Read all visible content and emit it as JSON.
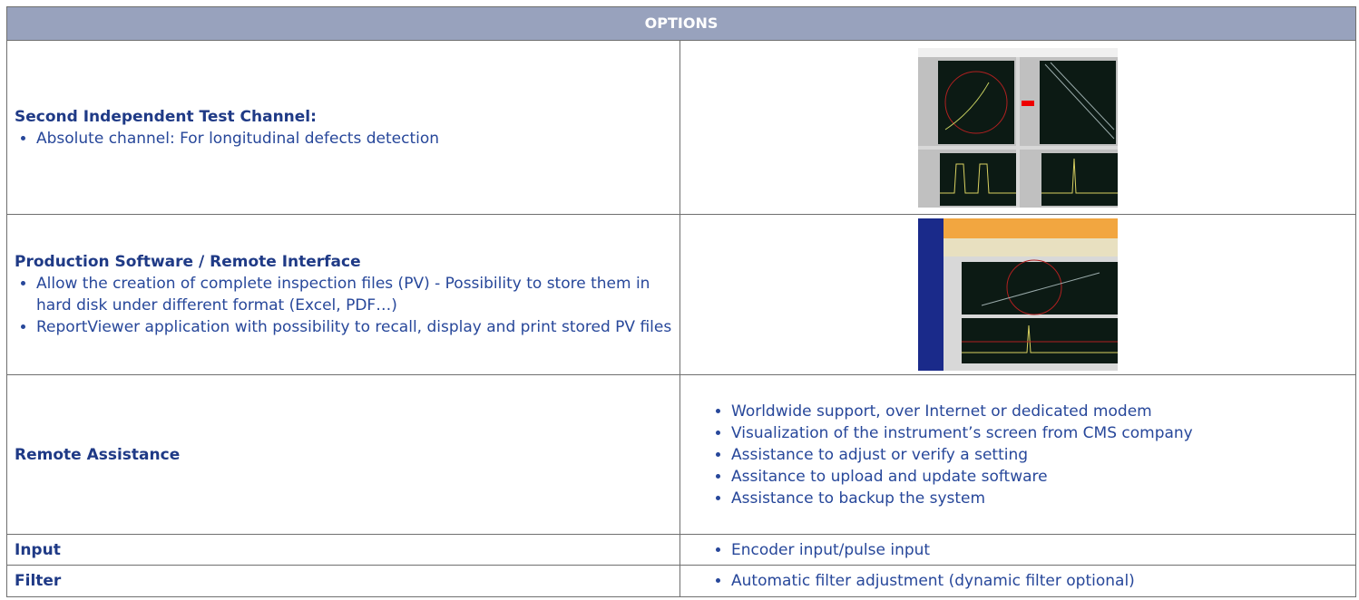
{
  "header": {
    "title": "OPTIONS"
  },
  "table": {
    "rows": [
      {
        "label": "Second Independent Test Channel:",
        "items": [
          "Absolute channel: For longitudinal defects detection"
        ]
      },
      {
        "label": "Production Software / Remote Interface",
        "items": [
          "Allow the creation of complete inspection files (PV) - Possibility to store them in hard disk under different format (Excel, PDF…)",
          "ReportViewer application with possibility to recall, display and print stored PV files"
        ]
      },
      {
        "label": "Remote Assistance",
        "items": [
          "Worldwide support, over Internet or dedicated modem",
          "Visualization of the instrument’s screen from CMS company",
          "Assistance to adjust or verify a setting",
          "Assitance to upload and update software",
          "Assistance to backup the system"
        ]
      },
      {
        "label": "Input",
        "items": [
          "Encoder input/pulse input"
        ]
      },
      {
        "label": "Filter",
        "items": [
          "Automatic filter adjustment (dynamic filter optional)"
        ]
      }
    ]
  }
}
